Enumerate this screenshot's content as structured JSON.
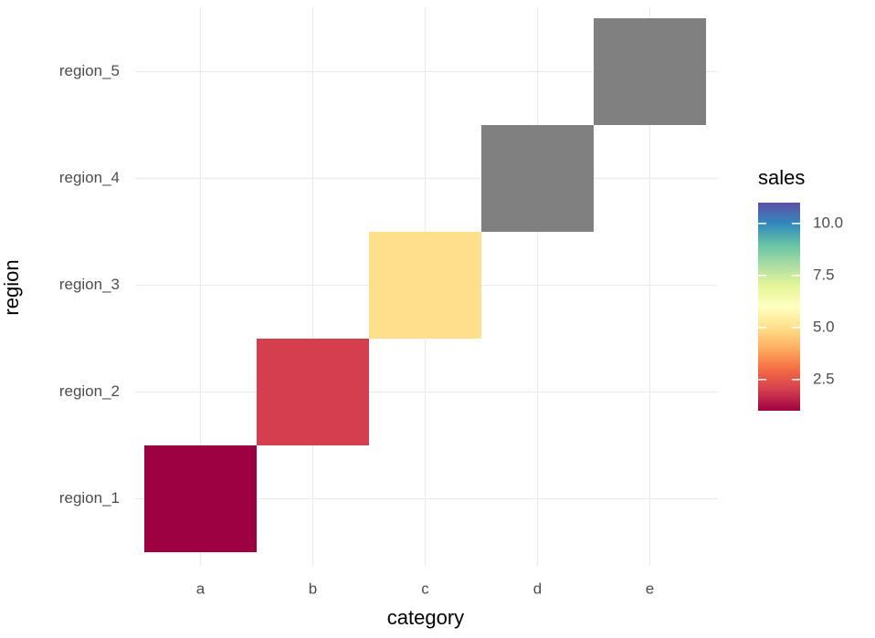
{
  "chart_data": {
    "type": "heatmap",
    "x_label": "category",
    "y_label": "region",
    "x_categories": [
      "a",
      "b",
      "c",
      "d",
      "e"
    ],
    "y_categories": [
      "region_1",
      "region_2",
      "region_3",
      "region_4",
      "region_5"
    ],
    "cells": [
      {
        "x": "a",
        "y": "region_1",
        "value": 1
      },
      {
        "x": "b",
        "y": "region_2",
        "value": 2
      },
      {
        "x": "c",
        "y": "region_3",
        "value": 5
      },
      {
        "x": "d",
        "y": "region_4",
        "value": null
      },
      {
        "x": "e",
        "y": "region_5",
        "value": null
      }
    ],
    "colorbar_title": "sales",
    "zlim": [
      1,
      11
    ],
    "zticks": [
      {
        "value": 2.5,
        "label": "2.5"
      },
      {
        "value": 5,
        "label": "5.0"
      },
      {
        "value": 7.5,
        "label": "7.5"
      },
      {
        "value": 10,
        "label": "10.0"
      }
    ],
    "palette": [
      "#9e0142",
      "#d53e4f",
      "#f46d43",
      "#fdae61",
      "#fee08b",
      "#ffffbf",
      "#e6f598",
      "#abdda4",
      "#66c2a5",
      "#3288bd",
      "#5e4fa2"
    ],
    "na_color": "#808080",
    "grid": true
  }
}
